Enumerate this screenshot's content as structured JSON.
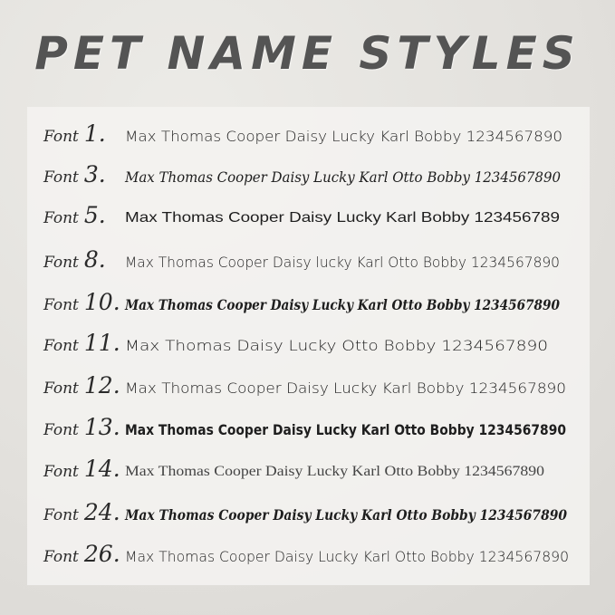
{
  "title": "PET NAME STYLES",
  "font_word": "Font",
  "rows": [
    {
      "number": "1.",
      "sample": "Max Thomas Cooper Daisy Lucky Karl Bobby 1234567890",
      "style": "s-hand",
      "width": 483
    },
    {
      "number": "3.",
      "sample": "Max Thomas Cooper Daisy Lucky Karl Otto Bobby 1234567890",
      "style": "s-script",
      "width": 481
    },
    {
      "number": "5.",
      "sample": "Max Thomas Cooper Daisy Lucky Karl  Bobby 123456789",
      "style": "s-sans",
      "width": 480
    },
    {
      "number": "8.",
      "sample": "Max Thomas Cooper Daisy lucky Karl Otto Bobby 1234567890",
      "style": "s-hand",
      "width": 480
    },
    {
      "number": "10.",
      "sample": "Max Thomas Cooper Daisy Lucky Karl Otto Bobby 1234567890",
      "style": "s-boldscript",
      "width": 480
    },
    {
      "number": "11.",
      "sample": "Max Thomas Daisy Lucky Otto Bobby 1234567890",
      "style": "s-hand",
      "width": 467
    },
    {
      "number": "12.",
      "sample": "Max Thomas Cooper Daisy Lucky Karl Bobby 1234567890",
      "style": "s-hand",
      "width": 487
    },
    {
      "number": "13.",
      "sample": "Max Thomas Cooper Daisy Lucky Karl Otto Bobby 1234567890",
      "style": "s-bold",
      "width": 487
    },
    {
      "number": "14.",
      "sample": "Max Thomas Cooper Daisy Lucky Karl Otto Bobby 1234567890",
      "style": "s-serif",
      "width": 463
    },
    {
      "number": "24.",
      "sample": "Max Thomas Cooper Daisy Lucky Karl Otto Bobby 1234567890",
      "style": "s-boldscript",
      "width": 488
    },
    {
      "number": "26.",
      "sample": "Max Thomas Cooper Daisy Lucky Karl Otto Bobby 1234567890",
      "style": "s-hand",
      "width": 490
    }
  ]
}
